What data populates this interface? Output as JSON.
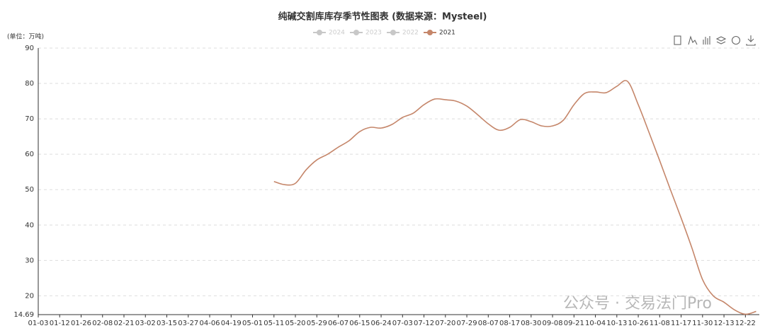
{
  "chart_data": {
    "type": "line",
    "title": "纯碱交割库库存季节性图表 (数据来源：Mysteel)",
    "y_label": "(单位：万吨)",
    "watermark": "公众号 · 交易法门Pro",
    "legend_inactive": [
      "2024",
      "2023",
      "2022"
    ],
    "inactive_color": "#c8c8c8",
    "categories": [
      "01-03",
      null,
      "01-12",
      null,
      "01-26",
      null,
      "02-08",
      null,
      "02-21",
      null,
      "03-02",
      null,
      "03-15",
      null,
      "03-27",
      null,
      "04-06",
      null,
      "04-19",
      null,
      "05-01",
      null,
      "05-11",
      null,
      "05-20",
      null,
      "05-29",
      null,
      "06-07",
      null,
      "06-15",
      null,
      "06-24",
      null,
      "07-03",
      null,
      "07-12",
      null,
      "07-20",
      null,
      "07-29",
      null,
      "08-07",
      null,
      "08-17",
      null,
      "08-30",
      null,
      "09-08",
      null,
      "09-21",
      null,
      "10-04",
      null,
      "10-13",
      null,
      "10-26",
      null,
      "11-08",
      null,
      "11-17",
      null,
      "11-30",
      null,
      "12-13",
      null,
      "12-22",
      null
    ],
    "series": [
      {
        "name": "2021",
        "color": "#c5866a",
        "values": [
          null,
          null,
          null,
          null,
          null,
          null,
          null,
          null,
          null,
          null,
          null,
          null,
          null,
          null,
          null,
          null,
          null,
          null,
          null,
          null,
          null,
          null,
          52.3,
          51.4,
          51.8,
          55.6,
          58.4,
          60,
          62,
          63.8,
          66.4,
          67.6,
          67.4,
          68.4,
          70.4,
          71.6,
          74,
          75.6,
          75.4,
          75,
          73.6,
          71.2,
          68.6,
          66.8,
          67.6,
          69.8,
          69.2,
          68,
          68,
          69.6,
          74,
          77.2,
          77.6,
          77.4,
          79.2,
          80.6,
          74,
          66.2,
          58.2,
          50,
          42,
          33.6,
          24.6,
          20,
          18.2,
          16,
          14.8,
          15.6
        ]
      }
    ],
    "ylim": [
      14.69,
      90
    ],
    "yticks": [
      14.69,
      20,
      30,
      40,
      50,
      60,
      70,
      80,
      90
    ],
    "grid": true
  }
}
